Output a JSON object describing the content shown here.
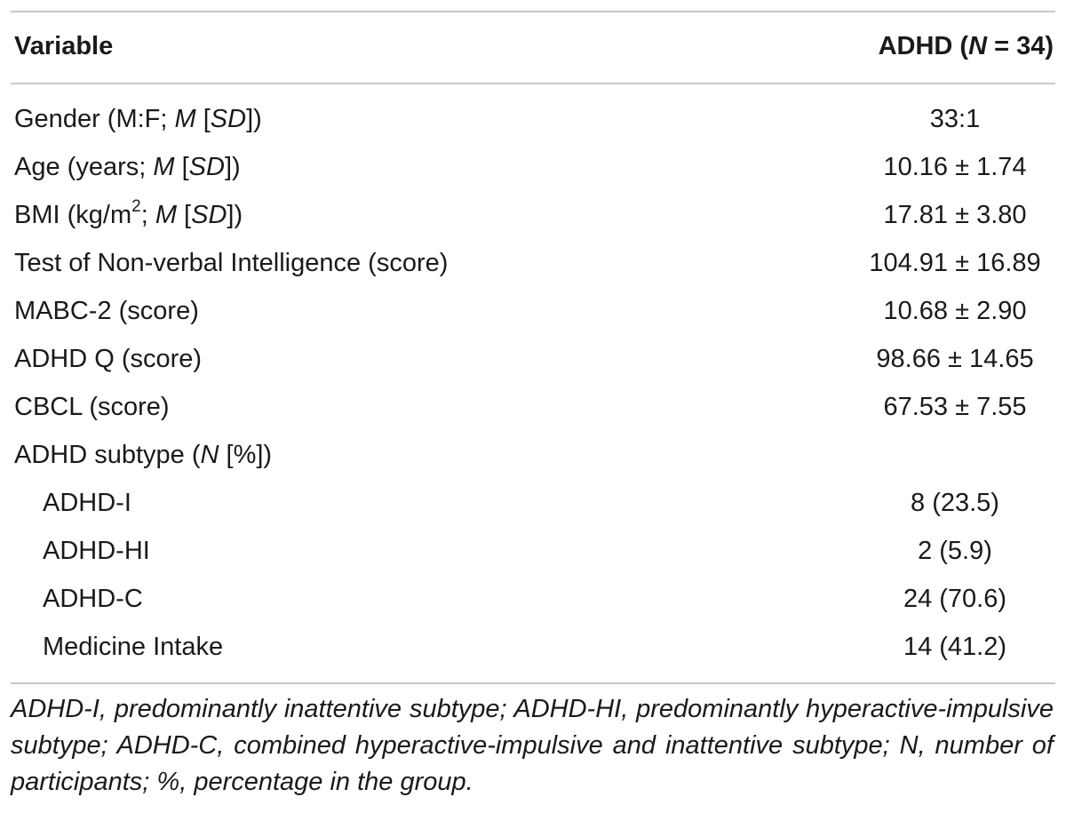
{
  "table": {
    "header": {
      "variable": "Variable",
      "group_prefix": "ADHD (",
      "group_n_symbol": "N",
      "group_suffix": " = 34)"
    },
    "rows": [
      {
        "label_html": "Gender (M:F; <i>M</i> [<i>SD</i>])",
        "value": "33:1",
        "indent": false
      },
      {
        "label_html": "Age (years; <i>M</i> [<i>SD</i>])",
        "value": "10.16 ± 1.74",
        "indent": false
      },
      {
        "label_html": "BMI (kg/m<sup>2</sup>; <i>M</i> [<i>SD</i>])",
        "value": "17.81 ± 3.80",
        "indent": false
      },
      {
        "label_html": "Test of Non-verbal Intelligence (score)",
        "value": "104.91 ± 16.89",
        "indent": false
      },
      {
        "label_html": "MABC-2 (score)",
        "value": "10.68 ± 2.90",
        "indent": false
      },
      {
        "label_html": "ADHD Q (score)",
        "value": "98.66 ± 14.65",
        "indent": false
      },
      {
        "label_html": "CBCL (score)",
        "value": "67.53 ± 7.55",
        "indent": false
      },
      {
        "label_html": "ADHD subtype (<i>N</i> [%])",
        "value": "",
        "indent": false
      },
      {
        "label_html": "ADHD-I",
        "value": "8 (23.5)",
        "indent": true
      },
      {
        "label_html": "ADHD-HI",
        "value": "2 (5.9)",
        "indent": true
      },
      {
        "label_html": "ADHD-C",
        "value": "24 (70.6)",
        "indent": true
      },
      {
        "label_html": "Medicine Intake",
        "value": "14 (41.2)",
        "indent": true
      }
    ],
    "footnote": "ADHD-I, predominantly inattentive subtype; ADHD-HI, predominantly hyperactive-impulsive subtype; ADHD-C, combined hyperactive-impulsive and inattentive subtype; N, number of participants; %, percentage in the group."
  }
}
